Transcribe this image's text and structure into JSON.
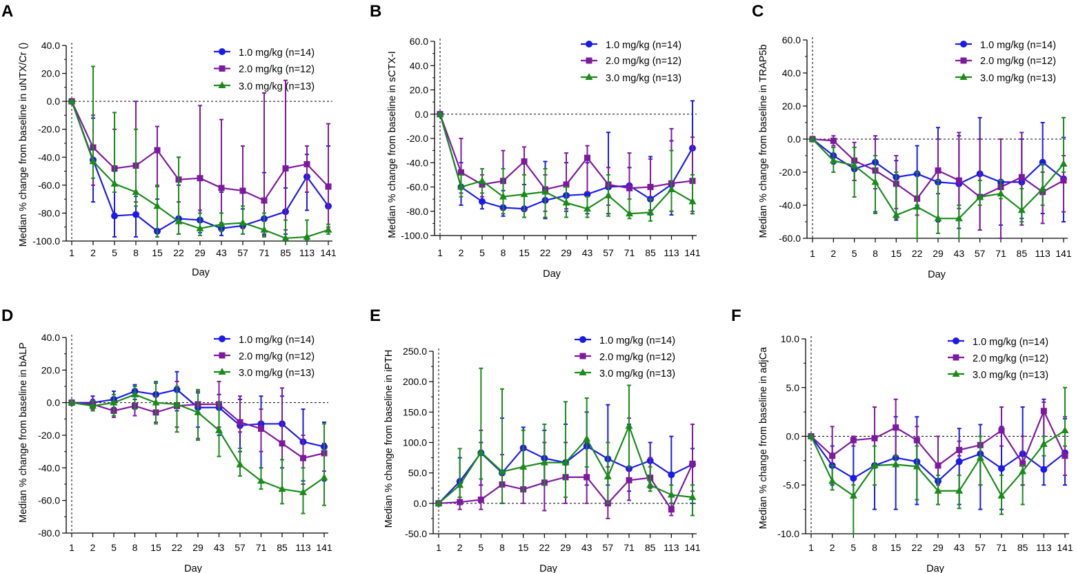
{
  "figure": {
    "x_categories": [
      1,
      2,
      5,
      8,
      15,
      22,
      29,
      43,
      57,
      71,
      85,
      113,
      141
    ],
    "xlabel": "Day",
    "series_names": [
      "1.0 mg/kg (n=14)",
      "2.0 mg/kg (n=12)",
      "3.0 mg/kg (n=13)"
    ],
    "colors": [
      "#1a1aeb",
      "#7d199e",
      "#1a8a1a"
    ],
    "markers": [
      "circle",
      "square",
      "triangle"
    ]
  },
  "chart_data": [
    {
      "type": "line",
      "panel": "A",
      "ylabel": "Median % change from baseline in uNTX/Cr ()",
      "ylim": [
        -100,
        40
      ],
      "yticks": [
        "40.0",
        "20.0",
        "0.0",
        "-20.0",
        "-40.0",
        "-60.0",
        "-80.0",
        "-100.0"
      ],
      "x": [
        1,
        2,
        5,
        8,
        15,
        22,
        29,
        43,
        57,
        71,
        85,
        113,
        141
      ],
      "series": [
        {
          "name": "1.0 mg/kg (n=14)",
          "values": [
            0,
            -42,
            -82,
            -81,
            -93,
            -84,
            -85,
            -91,
            -89,
            -84,
            -79,
            -54,
            -75
          ],
          "err_low": [
            0,
            -72,
            -97,
            -97,
            -97,
            -95,
            -94,
            -96,
            -95,
            -95,
            -95,
            -78,
            -93
          ],
          "err_high": [
            0,
            -12,
            -50,
            -68,
            -70,
            -60,
            -55,
            -65,
            -77,
            -51,
            -62,
            -38,
            -32
          ]
        },
        {
          "name": "2.0 mg/kg (n=12)",
          "values": [
            0,
            -33,
            -48,
            -46,
            -35,
            -56,
            -55,
            -62,
            -64,
            -71,
            -48,
            -45,
            -61
          ],
          "err_low": [
            0,
            -60,
            -60,
            -72,
            -61,
            -72,
            -78,
            -87,
            -91,
            -96,
            -92,
            -65,
            -90
          ],
          "err_high": [
            0,
            -10,
            -20,
            0,
            -18,
            -40,
            -3,
            -13,
            -32,
            6,
            15,
            -32,
            -16
          ]
        },
        {
          "name": "3.0 mg/kg (n=13)",
          "values": [
            0,
            -43,
            -59,
            -65,
            -75,
            -86,
            -91,
            -88,
            -87,
            -92,
            -98,
            -97,
            -92
          ],
          "err_low": [
            0,
            -55,
            -65,
            -75,
            -97,
            -95,
            -96,
            -93,
            -95,
            -97,
            -99,
            -99,
            -95
          ],
          "err_high": [
            0,
            25,
            -8,
            -20,
            -60,
            -40,
            -80,
            -80,
            -75,
            -80,
            -85,
            -85,
            -88
          ]
        }
      ]
    },
    {
      "type": "line",
      "panel": "B",
      "ylabel": "Median % change from baseline in sCTX-I",
      "ylim": [
        -100,
        60
      ],
      "yticks": [
        "60.0",
        "40.0",
        "20.0",
        "0.0",
        "-20.0",
        "-40.0",
        "-60.0",
        "-80.0",
        "-100.0"
      ],
      "x": [
        1,
        2,
        5,
        8,
        15,
        22,
        29,
        43,
        57,
        71,
        85,
        113,
        141
      ],
      "series": [
        {
          "name": "1.0 mg/kg (n=14)",
          "values": [
            0,
            -60,
            -72,
            -77,
            -78,
            -71,
            -67,
            -66,
            -60,
            -59,
            -70,
            -58,
            -28
          ],
          "err_low": [
            0,
            -75,
            -78,
            -84,
            -85,
            -86,
            -80,
            -82,
            -82,
            -83,
            -83,
            -83,
            -82
          ],
          "err_high": [
            0,
            -40,
            -60,
            -63,
            -58,
            -39,
            -40,
            -40,
            -15,
            -44,
            -35,
            -22,
            11
          ]
        },
        {
          "name": "2.0 mg/kg (n=12)",
          "values": [
            0,
            -48,
            -58,
            -55,
            -39,
            -62,
            -58,
            -36,
            -58,
            -61,
            -60,
            -57,
            -55
          ],
          "err_low": [
            0,
            -65,
            -68,
            -79,
            -79,
            -80,
            -78,
            -64,
            -75,
            -83,
            -79,
            -80,
            -80
          ],
          "err_high": [
            0,
            -20,
            -50,
            -30,
            -27,
            -50,
            -32,
            -26,
            -44,
            -32,
            -37,
            -12,
            -19
          ]
        },
        {
          "name": "3.0 mg/kg (n=13)",
          "values": [
            0,
            -60,
            -55,
            -68,
            -66,
            -64,
            -73,
            -78,
            -67,
            -82,
            -81,
            -62,
            -72
          ],
          "err_low": [
            0,
            -68,
            -65,
            -82,
            -85,
            -85,
            -85,
            -85,
            -84,
            -86,
            -88,
            -80,
            -82
          ],
          "err_high": [
            0,
            -50,
            -45,
            -45,
            -50,
            -45,
            -60,
            -68,
            -50,
            -70,
            -70,
            -30,
            -50
          ]
        }
      ]
    },
    {
      "type": "line",
      "panel": "C",
      "ylabel": "Median % change from baseline in TRAP5b",
      "ylim": [
        -60,
        60
      ],
      "yticks": [
        "60.0",
        "40.0",
        "20.0",
        "0.0",
        "-20.0",
        "-40.0",
        "-60.0"
      ],
      "x": [
        1,
        2,
        5,
        8,
        15,
        22,
        29,
        43,
        57,
        71,
        85,
        113,
        141
      ],
      "series": [
        {
          "name": "1.0 mg/kg (n=14)",
          "values": [
            0,
            -10,
            -18,
            -14,
            -23,
            -21,
            -26,
            -27,
            -21,
            -26,
            -26,
            -14,
            -24
          ],
          "err_low": [
            0,
            -15,
            -25,
            -44,
            -49,
            -40,
            -50,
            -54,
            -55,
            -52,
            -48,
            -45,
            -50
          ],
          "err_high": [
            0,
            -5,
            -5,
            0,
            -13,
            -4,
            7,
            2,
            13,
            0,
            0,
            10,
            1
          ]
        },
        {
          "name": "2.0 mg/kg (n=12)",
          "values": [
            0,
            -1,
            -13,
            -19,
            -27,
            -36,
            -19,
            -25,
            -35,
            -29,
            -23,
            -32,
            -25
          ],
          "err_low": [
            0,
            -4,
            -25,
            -30,
            -42,
            -46,
            -33,
            -42,
            -55,
            -62,
            -52,
            -51,
            -44
          ],
          "err_high": [
            0,
            2,
            -2,
            2,
            -10,
            -20,
            0,
            4,
            0,
            0,
            4,
            -20,
            -10
          ]
        },
        {
          "name": "3.0 mg/kg (n=13)",
          "values": [
            0,
            -13,
            -16,
            -26,
            -46,
            -41,
            -48,
            -48,
            -35,
            -33,
            -43,
            -30,
            -15
          ],
          "err_low": [
            0,
            -20,
            -35,
            -45,
            -48,
            -64,
            -57,
            -61,
            -40,
            -36,
            -50,
            -40,
            -20
          ],
          "err_high": [
            0,
            -5,
            -5,
            -10,
            -20,
            -20,
            -25,
            -40,
            -25,
            -25,
            -30,
            -15,
            13
          ]
        }
      ]
    },
    {
      "type": "line",
      "panel": "D",
      "ylabel": "Median % change from baseline in bALP",
      "ylim": [
        -80,
        40
      ],
      "yticks": [
        "40.0",
        "20.0",
        "0.0",
        "-20.0",
        "-40.0",
        "-60.0",
        "-80.0"
      ],
      "x": [
        1,
        2,
        5,
        8,
        15,
        22,
        29,
        43,
        57,
        71,
        85,
        113,
        141
      ],
      "series": [
        {
          "name": "1.0 mg/kg (n=14)",
          "values": [
            0,
            0,
            2,
            7,
            5,
            8,
            -3,
            -3,
            -14,
            -13,
            -13,
            -24,
            -27
          ],
          "err_low": [
            0,
            -4,
            -3,
            2,
            -5,
            -5,
            -15,
            -20,
            -30,
            -40,
            -40,
            -48,
            -48
          ],
          "err_high": [
            0,
            4,
            7,
            11,
            12,
            19,
            6,
            5,
            2,
            4,
            4,
            -4,
            -12
          ]
        },
        {
          "name": "2.0 mg/kg (n=12)",
          "values": [
            0,
            -1,
            -5,
            -2,
            -6,
            -2,
            -1,
            -1,
            -12,
            -16,
            -25,
            -34,
            -31
          ],
          "err_low": [
            0,
            -4,
            -9,
            -8,
            -12,
            -15,
            -22,
            -15,
            -18,
            -30,
            -35,
            -50,
            -42
          ],
          "err_high": [
            0,
            2,
            1,
            6,
            4,
            13,
            7,
            13,
            4,
            -4,
            9,
            -20,
            -25
          ]
        },
        {
          "name": "3.0 mg/kg (n=13)",
          "values": [
            0,
            -2,
            0,
            5,
            0,
            -1,
            -6,
            -17,
            -38,
            -48,
            -53,
            -55,
            -46
          ],
          "err_low": [
            0,
            -5,
            -8,
            -4,
            -13,
            -18,
            -23,
            -33,
            -45,
            -53,
            -62,
            -68,
            -63
          ],
          "err_high": [
            0,
            1,
            5,
            10,
            13,
            10,
            8,
            0,
            -28,
            -40,
            -35,
            -40,
            -13
          ]
        }
      ]
    },
    {
      "type": "line",
      "panel": "E",
      "ylabel": "Median % change from baseline in iPTH",
      "ylim": [
        -50,
        250
      ],
      "yticks": [
        "250.0",
        "200.0",
        "150.0",
        "100.0",
        "50.0",
        "0.0",
        "-50.0"
      ],
      "x": [
        1,
        2,
        5,
        8,
        15,
        22,
        29,
        43,
        57,
        71,
        85,
        113,
        141
      ],
      "series": [
        {
          "name": "1.0 mg/kg (n=14)",
          "values": [
            0,
            36,
            83,
            50,
            91,
            74,
            67,
            94,
            73,
            57,
            70,
            47,
            64
          ],
          "err_low": [
            0,
            10,
            30,
            0,
            60,
            30,
            10,
            30,
            30,
            20,
            30,
            0,
            0
          ],
          "err_high": [
            0,
            75,
            100,
            140,
            125,
            120,
            130,
            150,
            162,
            130,
            100,
            110,
            90
          ]
        },
        {
          "name": "2.0 mg/kg (n=12)",
          "values": [
            0,
            2,
            6,
            31,
            23,
            34,
            43,
            43,
            0,
            38,
            42,
            -10,
            65
          ],
          "err_low": [
            0,
            -10,
            -10,
            0,
            0,
            -12,
            0,
            0,
            -25,
            5,
            25,
            -20,
            20
          ],
          "err_high": [
            0,
            10,
            120,
            80,
            90,
            100,
            100,
            100,
            60,
            140,
            75,
            0,
            130
          ]
        },
        {
          "name": "3.0 mg/kg (n=13)",
          "values": [
            0,
            30,
            84,
            52,
            60,
            67,
            67,
            106,
            44,
            127,
            30,
            14,
            10
          ],
          "err_low": [
            0,
            10,
            40,
            0,
            20,
            30,
            10,
            60,
            0,
            60,
            20,
            0,
            -20
          ],
          "err_high": [
            0,
            90,
            222,
            188,
            120,
            130,
            167,
            173,
            100,
            194,
            60,
            30,
            30
          ]
        }
      ]
    },
    {
      "type": "line",
      "panel": "F",
      "ylabel": "Median % change from baseline in adjCa",
      "ylim": [
        -10,
        10
      ],
      "yticks": [
        "10.0",
        "5.0",
        "0.0",
        "-5.0",
        "-10.0"
      ],
      "x": [
        1,
        2,
        5,
        8,
        15,
        22,
        29,
        43,
        57,
        71,
        85,
        113,
        141
      ],
      "series": [
        {
          "name": "1.0 mg/kg (n=14)",
          "values": [
            0,
            -3,
            -4.3,
            -3,
            -2.2,
            -2.6,
            -4.6,
            -2.6,
            -1.8,
            -3.3,
            -1.8,
            -3.4,
            -1.7
          ],
          "err_low": [
            0,
            -5,
            -6,
            -7.5,
            -7.5,
            -7,
            -7,
            -7,
            -7.5,
            -7.5,
            -5,
            -5,
            -5
          ],
          "err_high": [
            0,
            -1,
            0,
            0,
            2,
            2,
            0,
            0.8,
            1.2,
            1,
            3,
            3.8,
            1.8
          ]
        },
        {
          "name": "2.0 mg/kg (n=12)",
          "values": [
            0,
            -2,
            -0.4,
            -0.2,
            0.9,
            -0.4,
            -3,
            -1.4,
            -0.9,
            0.6,
            -2.8,
            2.6,
            -2
          ],
          "err_low": [
            0,
            -3,
            -1,
            -3,
            -2,
            -3,
            -5,
            -2,
            -5,
            -1,
            -5,
            -1,
            -4
          ],
          "err_high": [
            0,
            1,
            0,
            3,
            3.8,
            1,
            0,
            -0.5,
            0,
            3,
            0,
            3.5,
            2
          ]
        },
        {
          "name": "3.0 mg/kg (n=13)",
          "values": [
            0,
            -4.6,
            -6.1,
            -3,
            -2.9,
            -3.1,
            -5.6,
            -5.6,
            -2.2,
            -6.1,
            -3.6,
            -0.8,
            0.6
          ],
          "err_low": [
            0,
            -5.5,
            -10,
            -5,
            -3,
            -6.5,
            -7,
            -7.4,
            -5,
            -8,
            -7,
            -2,
            -1
          ],
          "err_high": [
            0,
            -3,
            -5,
            -1,
            -2,
            -1,
            -4,
            -4,
            0,
            -4,
            -3,
            0,
            5
          ]
        }
      ]
    }
  ]
}
